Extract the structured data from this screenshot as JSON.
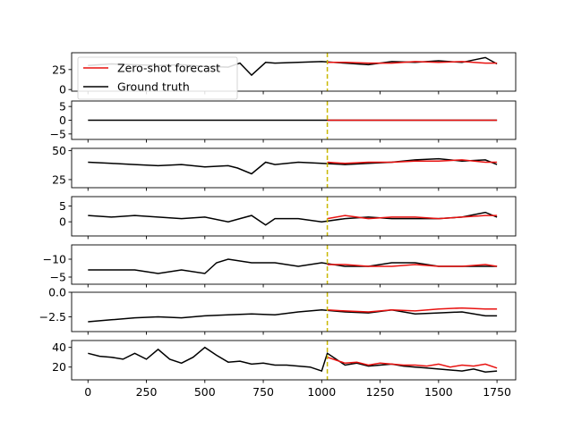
{
  "chart_data": {
    "type": "line",
    "shared_x": {
      "ticks": [
        0,
        250,
        500,
        750,
        1000,
        1250,
        1500,
        1750
      ],
      "tick_labels": [
        "0",
        "250",
        "500",
        "750",
        "1000",
        "1250",
        "1500",
        "1750"
      ],
      "xlim": [
        -70,
        1830
      ]
    },
    "forecast_start_x": 1024,
    "series_names": [
      "Zero-shot forecast",
      "Ground truth"
    ],
    "legend": {
      "placement": "upper-left",
      "entries": [
        {
          "label": "Zero-shot forecast",
          "color": "#e8110f"
        },
        {
          "label": "Ground truth",
          "color": "#000000"
        }
      ]
    },
    "colors": {
      "forecast": "#e8110f",
      "ground_truth": "#000000",
      "forecast_start_line": "#c9b800"
    },
    "panels": [
      {
        "ylim": [
          -2,
          46
        ],
        "yticks": [
          0,
          25
        ],
        "ytick_labels": [
          "0",
          "25"
        ],
        "ground_truth": {
          "x": [
            0,
            100,
            200,
            300,
            400,
            500,
            600,
            650,
            700,
            760,
            800,
            900,
            1000,
            1100,
            1200,
            1300,
            1400,
            1500,
            1600,
            1700,
            1750
          ],
          "y": [
            30,
            32,
            31,
            30,
            31,
            29,
            28,
            33,
            18,
            34,
            33,
            34,
            35,
            33,
            31,
            35,
            34,
            36,
            34,
            40,
            32
          ]
        },
        "forecast": {
          "x": [
            1024,
            1100,
            1200,
            1300,
            1400,
            1500,
            1600,
            1700,
            1750
          ],
          "y": [
            34,
            34,
            33,
            33,
            35,
            34,
            35,
            33,
            33
          ]
        }
      },
      {
        "ylim": [
          -7,
          7
        ],
        "yticks": [
          -5,
          0,
          5
        ],
        "ytick_labels": [
          "−5",
          "0",
          "5"
        ],
        "ground_truth": {
          "x": [
            0,
            90,
            160,
            280,
            400,
            500,
            560,
            640,
            720,
            800,
            900,
            1000,
            1100,
            1300,
            1400,
            1500,
            1600,
            1700,
            1750
          ],
          "y": [
            0,
            0,
            0,
            0,
            0,
            0,
            0,
            0,
            0,
            0,
            0,
            0,
            0,
            0,
            0,
            0,
            0,
            0,
            0
          ]
        },
        "forecast": {
          "x": [
            1024,
            1750
          ],
          "y": [
            0,
            0
          ]
        }
      },
      {
        "ylim": [
          18,
          52
        ],
        "yticks": [
          25,
          50
        ],
        "ytick_labels": [
          "25",
          "50"
        ],
        "ground_truth": {
          "x": [
            0,
            100,
            200,
            300,
            400,
            500,
            600,
            640,
            700,
            760,
            800,
            900,
            1000,
            1100,
            1200,
            1300,
            1400,
            1500,
            1600,
            1700,
            1750
          ],
          "y": [
            40,
            39,
            38,
            37,
            38,
            36,
            37,
            35,
            30,
            40,
            38,
            40,
            39,
            38,
            39,
            40,
            42,
            43,
            41,
            42,
            38
          ]
        },
        "forecast": {
          "x": [
            1024,
            1100,
            1200,
            1300,
            1400,
            1500,
            1600,
            1700,
            1750
          ],
          "y": [
            40,
            39,
            40,
            40,
            41,
            41,
            42,
            40,
            40
          ]
        }
      },
      {
        "ylim": [
          -4.5,
          8
        ],
        "yticks": [
          0,
          5
        ],
        "ytick_labels": [
          "0",
          "5"
        ],
        "ground_truth": {
          "x": [
            0,
            100,
            200,
            300,
            400,
            500,
            600,
            650,
            700,
            760,
            800,
            900,
            1000,
            1100,
            1200,
            1300,
            1400,
            1500,
            1600,
            1700,
            1750
          ],
          "y": [
            2,
            1.5,
            2,
            1.5,
            1,
            1.5,
            0,
            1,
            2,
            -1,
            1,
            1,
            0,
            1,
            1.5,
            1,
            1,
            1,
            1.5,
            3,
            1.5
          ]
        },
        "forecast": {
          "x": [
            1024,
            1100,
            1200,
            1300,
            1400,
            1500,
            1600,
            1700,
            1750
          ],
          "y": [
            1,
            2,
            1,
            1.5,
            1.5,
            1,
            1.5,
            2,
            2
          ]
        }
      },
      {
        "ylim": [
          -14,
          -3
        ],
        "y_inverted": true,
        "yticks": [
          -5,
          -10
        ],
        "ytick_labels": [
          "−5",
          "−10"
        ],
        "ground_truth": {
          "x": [
            0,
            100,
            200,
            300,
            400,
            500,
            550,
            600,
            700,
            800,
            900,
            1000,
            1100,
            1200,
            1300,
            1400,
            1500,
            1600,
            1700,
            1750
          ],
          "y": [
            -7,
            -7,
            -7,
            -6,
            -7,
            -6,
            -9,
            -10,
            -9,
            -9,
            -8,
            -9,
            -8,
            -8,
            -9,
            -9,
            -8,
            -8,
            -8,
            -8
          ]
        },
        "forecast": {
          "x": [
            1024,
            1100,
            1200,
            1300,
            1400,
            1500,
            1600,
            1700,
            1750
          ],
          "y": [
            -8.5,
            -8.5,
            -8,
            -8,
            -8.5,
            -8,
            -8,
            -8.5,
            -8
          ]
        }
      },
      {
        "ylim": [
          -4,
          0
        ],
        "yticks": [
          0,
          -2.5
        ],
        "ytick_labels": [
          "0.0",
          "−2.5"
        ],
        "ground_truth": {
          "x": [
            0,
            100,
            200,
            300,
            400,
            500,
            600,
            700,
            800,
            900,
            1000,
            1100,
            1200,
            1300,
            1400,
            1500,
            1600,
            1700,
            1750
          ],
          "y": [
            -3,
            -2.8,
            -2.6,
            -2.5,
            -2.6,
            -2.4,
            -2.3,
            -2.2,
            -2.3,
            -2.0,
            -1.8,
            -2.0,
            -2.1,
            -1.8,
            -2.2,
            -2.1,
            -2.0,
            -2.4,
            -2.4
          ]
        },
        "forecast": {
          "x": [
            1024,
            1100,
            1200,
            1300,
            1400,
            1500,
            1600,
            1700,
            1750
          ],
          "y": [
            -1.8,
            -1.9,
            -2.0,
            -1.8,
            -1.9,
            -1.7,
            -1.6,
            -1.7,
            -1.7
          ]
        }
      },
      {
        "ylim": [
          7,
          47
        ],
        "yticks": [
          20,
          40
        ],
        "ytick_labels": [
          "20",
          "40"
        ],
        "ground_truth": {
          "x": [
            0,
            50,
            100,
            150,
            200,
            250,
            300,
            350,
            400,
            450,
            500,
            550,
            600,
            650,
            700,
            750,
            800,
            850,
            900,
            950,
            1000,
            1024,
            1100,
            1150,
            1200,
            1250,
            1300,
            1350,
            1400,
            1450,
            1500,
            1550,
            1600,
            1650,
            1700,
            1750
          ],
          "y": [
            34,
            31,
            30,
            28,
            34,
            28,
            38,
            28,
            24,
            30,
            40,
            32,
            25,
            26,
            23,
            24,
            22,
            22,
            21,
            20,
            16,
            34,
            22,
            24,
            21,
            22,
            23,
            21,
            20,
            19,
            18,
            17,
            16,
            18,
            15,
            16
          ]
        },
        "forecast": {
          "x": [
            1024,
            1100,
            1150,
            1200,
            1250,
            1300,
            1350,
            1400,
            1450,
            1500,
            1550,
            1600,
            1650,
            1700,
            1750
          ],
          "y": [
            30,
            24,
            25,
            22,
            24,
            23,
            22,
            22,
            21,
            23,
            20,
            22,
            21,
            23,
            19
          ]
        }
      }
    ]
  }
}
